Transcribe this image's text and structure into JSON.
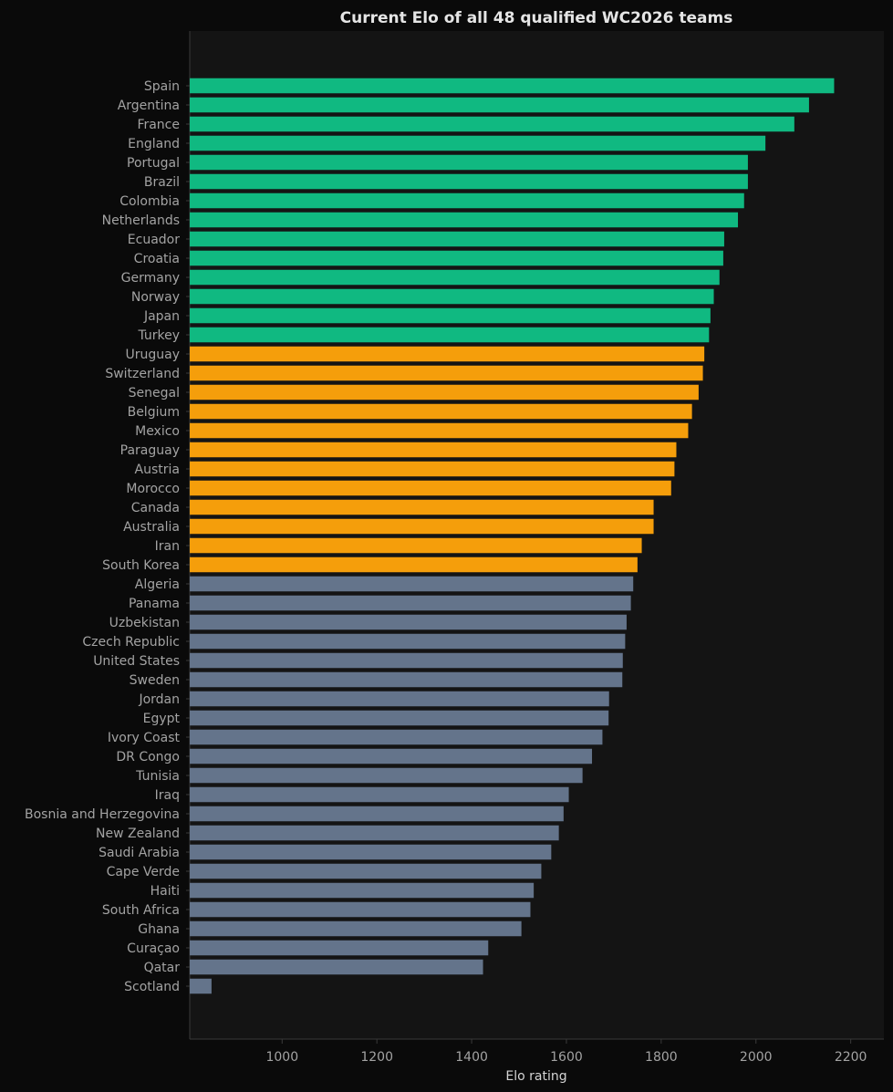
{
  "colors": {
    "page_background": "#0a0a0a",
    "plot_background": "#141414",
    "top_tier": "#10b981",
    "mid_tier": "#f59e0b",
    "low_tier": "#64748b",
    "text": "#a3a3a3",
    "title": "#e5e5e5",
    "axis": "#3a3a3a"
  },
  "chart_data": {
    "type": "bar",
    "orientation": "horizontal",
    "title": "Current Elo of all 48 qualified WC2026 teams",
    "xlabel": "Elo rating",
    "ylabel": "",
    "xlim": [
      805,
      2270
    ],
    "xticks": [
      1000,
      1200,
      1400,
      1600,
      1800,
      2000,
      2200
    ],
    "grid": false,
    "legend": "none",
    "categories": [
      "Spain",
      "Argentina",
      "France",
      "England",
      "Portugal",
      "Brazil",
      "Colombia",
      "Netherlands",
      "Ecuador",
      "Croatia",
      "Germany",
      "Norway",
      "Japan",
      "Turkey",
      "Uruguay",
      "Switzerland",
      "Senegal",
      "Belgium",
      "Mexico",
      "Paraguay",
      "Austria",
      "Morocco",
      "Canada",
      "Australia",
      "Iran",
      "South Korea",
      "Algeria",
      "Panama",
      "Uzbekistan",
      "Czech Republic",
      "United States",
      "Sweden",
      "Jordan",
      "Egypt",
      "Ivory Coast",
      "DR Congo",
      "Tunisia",
      "Iraq",
      "Bosnia and Herzegovina",
      "New Zealand",
      "Saudi Arabia",
      "Cape Verde",
      "Haiti",
      "South Africa",
      "Ghana",
      "Curaçao",
      "Qatar",
      "Scotland"
    ],
    "values": [
      2165,
      2112,
      2081,
      2020,
      1983,
      1983,
      1975,
      1962,
      1933,
      1931,
      1923,
      1911,
      1904,
      1901,
      1891,
      1888,
      1879,
      1865,
      1857,
      1832,
      1828,
      1821,
      1784,
      1784,
      1759,
      1750,
      1741,
      1736,
      1727,
      1724,
      1719,
      1718,
      1690,
      1689,
      1676,
      1654,
      1634,
      1605,
      1594,
      1584,
      1568,
      1547,
      1531,
      1524,
      1505,
      1435,
      1424,
      851
    ],
    "tiers": [
      "top",
      "top",
      "top",
      "top",
      "top",
      "top",
      "top",
      "top",
      "top",
      "top",
      "top",
      "top",
      "top",
      "top",
      "mid",
      "mid",
      "mid",
      "mid",
      "mid",
      "mid",
      "mid",
      "mid",
      "mid",
      "mid",
      "mid",
      "mid",
      "low",
      "low",
      "low",
      "low",
      "low",
      "low",
      "low",
      "low",
      "low",
      "low",
      "low",
      "low",
      "low",
      "low",
      "low",
      "low",
      "low",
      "low",
      "low",
      "low",
      "low",
      "low"
    ]
  }
}
